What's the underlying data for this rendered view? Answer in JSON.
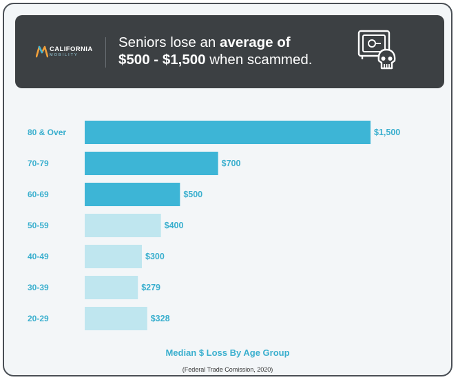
{
  "header": {
    "logo_name": "CALIFORNIA",
    "logo_sub": "MOBILITY",
    "headline_part1": "Seniors lose an ",
    "headline_bold1": "average of",
    "headline_bold2": "$500 - $1,500",
    "headline_part2": " when scammed."
  },
  "colors": {
    "bar_dark": "#3db5d6",
    "bar_light": "#bfe6ef",
    "label": "#3aafce",
    "header_bg": "#3c4043"
  },
  "chart_data": {
    "type": "bar",
    "orientation": "horizontal",
    "categories": [
      "80 & Over",
      "70-79",
      "60-69",
      "50-59",
      "40-49",
      "30-39",
      "20-29"
    ],
    "values": [
      1500,
      700,
      500,
      400,
      300,
      279,
      328
    ],
    "value_labels": [
      "$1,500",
      "$700",
      "$500",
      "$400",
      "$300",
      "$279",
      "$328"
    ],
    "highlighted": [
      true,
      true,
      true,
      false,
      false,
      false,
      false
    ],
    "title": "Median $ Loss By Age Group",
    "source": "(Federal Trade Comission, 2020)",
    "xlabel": "",
    "ylabel": "",
    "xlim": [
      0,
      1500
    ],
    "grid": false,
    "legend": "none"
  }
}
